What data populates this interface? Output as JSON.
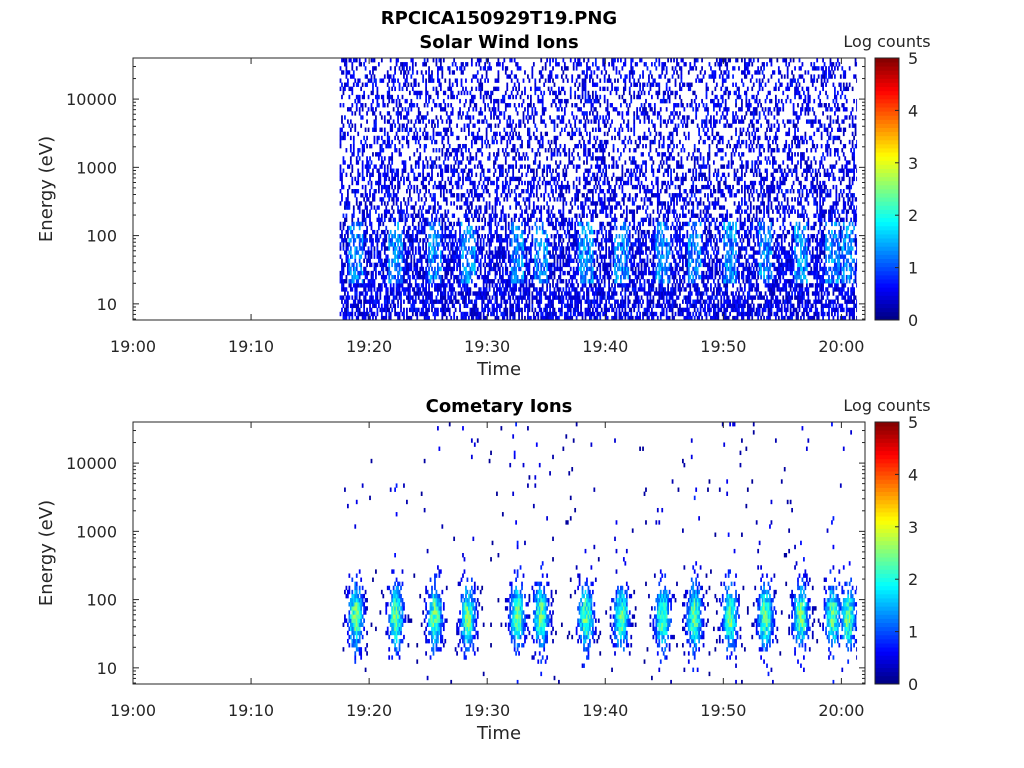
{
  "figure_title": "RPCICA150929T19.PNG",
  "chart_data": [
    {
      "type": "heatmap",
      "title": "Solar Wind Ions",
      "xlabel": "Time",
      "ylabel": "Energy (eV)",
      "x_range": [
        "19:00",
        "20:02"
      ],
      "x_ticks": [
        "19:00",
        "19:10",
        "19:20",
        "19:30",
        "19:40",
        "19:50",
        "20:00"
      ],
      "y_scale": "log",
      "y_range": [
        5.8,
        40000
      ],
      "y_ticks": [
        "10",
        "100",
        "1000",
        "10000"
      ],
      "colorbar": {
        "label": "Log counts",
        "min": 0,
        "max": 5,
        "ticks": [
          "0",
          "1",
          "2",
          "3",
          "4",
          "5"
        ],
        "colormap": "jet"
      },
      "data_start": "19:17.5",
      "data_end": "20:01.3",
      "pattern": "sparse low counts (0-1) across all energies, denser below ~100 eV, weak bursts ~1.5 near 40 eV",
      "burst_times": [
        "19:18.8",
        "19:22.2",
        "19:25.5",
        "19:28.3",
        "19:32.5",
        "19:34.5",
        "19:38.3",
        "19:41.3",
        "19:44.8",
        "19:47.5",
        "19:50.5",
        "19:53.5",
        "19:56.5",
        "19:59.2",
        "20:00.5"
      ]
    },
    {
      "type": "heatmap",
      "title": "Cometary Ions",
      "xlabel": "Time",
      "ylabel": "Energy (eV)",
      "x_range": [
        "19:00",
        "20:02"
      ],
      "x_ticks": [
        "19:00",
        "19:10",
        "19:20",
        "19:30",
        "19:40",
        "19:50",
        "20:00"
      ],
      "y_scale": "log",
      "y_range": [
        5.8,
        40000
      ],
      "y_ticks": [
        "10",
        "100",
        "1000",
        "10000"
      ],
      "colorbar": {
        "label": "Log counts",
        "min": 0,
        "max": 5,
        "ticks": [
          "0",
          "1",
          "2",
          "3",
          "4",
          "5"
        ],
        "colormap": "jet"
      },
      "data_start": "19:17.5",
      "data_end": "20:01.3",
      "pattern": "periodic bursts centred near 40-60 eV reaching log counts ~2.5, extending up to ~500 eV",
      "burst_times": [
        "19:18.8",
        "19:22.2",
        "19:25.5",
        "19:28.3",
        "19:32.5",
        "19:34.5",
        "19:38.3",
        "19:41.3",
        "19:44.8",
        "19:47.5",
        "19:50.5",
        "19:53.5",
        "19:56.5",
        "19:59.2",
        "20:00.5"
      ],
      "peak_log_counts": 2.6
    }
  ]
}
